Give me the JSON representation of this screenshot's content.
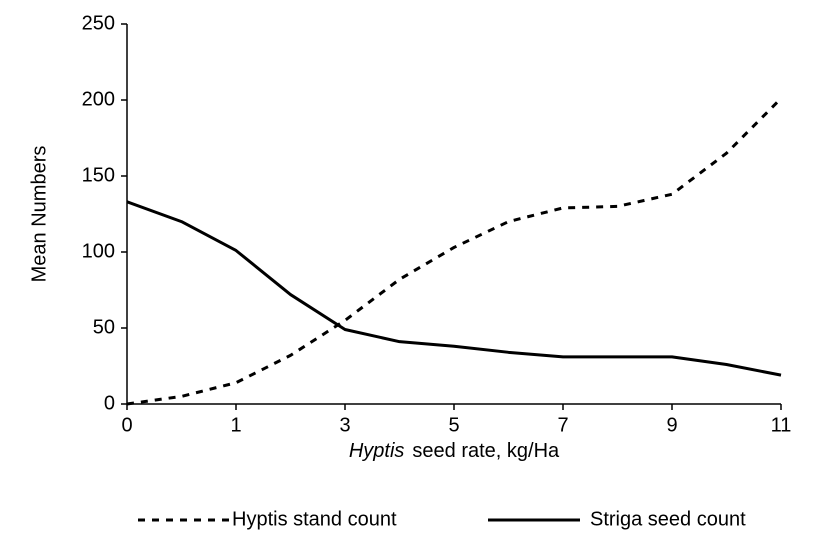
{
  "chart_data": {
    "type": "line",
    "x_label": {
      "italic": "Hyptis",
      "rest": "seed rate, kg/Ha"
    },
    "y_label": "Mean Numbers",
    "categories": [
      "0",
      null,
      "1",
      null,
      "3",
      null,
      "5",
      null,
      "7",
      null,
      "9",
      null,
      "11"
    ],
    "series": [
      {
        "name": "Hyptis stand count",
        "color": "#000000",
        "dash": true,
        "values": [
          0,
          5,
          14,
          32,
          55,
          82,
          103,
          120,
          129,
          130,
          138,
          165,
          201
        ]
      },
      {
        "name": "Striga seed count",
        "color": "#000000",
        "dash": false,
        "values": [
          133,
          120,
          101,
          72,
          49,
          41,
          38,
          34,
          31,
          31,
          31,
          26,
          19
        ]
      }
    ],
    "ylim": [
      0,
      250
    ],
    "yticks": [
      0,
      50,
      100,
      150,
      200,
      250
    ],
    "legend": "bottom"
  }
}
